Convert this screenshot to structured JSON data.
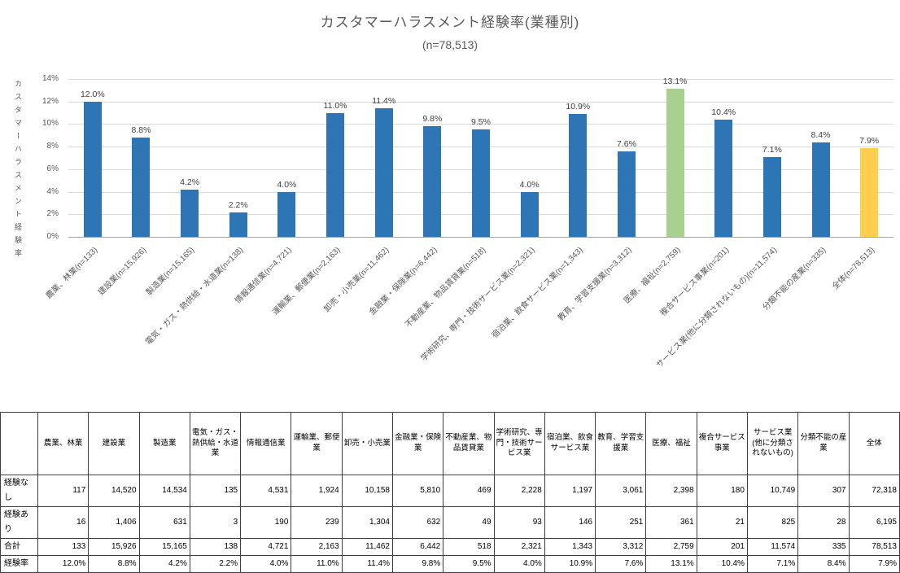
{
  "chart": {
    "title": "カスタマーハラスメント経験率(業種別)",
    "subtitle": "(n=78,513)",
    "y_axis_title": "カスタマーハラスメント経験率"
  },
  "chart_data": {
    "type": "bar",
    "title": "カスタマーハラスメント経験率(業種別)",
    "subtitle": "(n=78,513)",
    "xlabel": "",
    "ylabel": "カスタマーハラスメント経験率",
    "ylim": [
      0,
      14
    ],
    "ytick_step": 2,
    "ytick_suffix": "%",
    "grid": true,
    "legend": "none",
    "categories": [
      "農業、林業(n=133)",
      "建設業(n=15,926)",
      "製造業(n=15,165)",
      "電気・ガス・熱供給・水道業(n=138)",
      "情報通信業(n=4,721)",
      "運輸業、郵便業(n=2,163)",
      "卸売・小売業(n=11,462)",
      "金融業・保険業(n=6,442)",
      "不動産業、物品賃貸業(n=518)",
      "学術研究、専門・技術サービス業(n=2,321)",
      "宿泊業、飲食サービス業(n=1,343)",
      "教育、学習支援業(n=3,312)",
      "医療、福祉(n=2,759)",
      "複合サービス事業(n=201)",
      "サービス業(他に分類されないもの)(n=11,574)",
      "分類不能の産業(n=335)",
      "全体(n=78,513)"
    ],
    "values": [
      12.0,
      8.8,
      4.2,
      2.2,
      4.0,
      11.0,
      11.4,
      9.8,
      9.5,
      4.0,
      10.9,
      7.6,
      13.1,
      10.4,
      7.1,
      8.4,
      7.9
    ],
    "data_labels": [
      "12.0%",
      "8.8%",
      "4.2%",
      "2.2%",
      "4.0%",
      "11.0%",
      "11.4%",
      "9.8%",
      "9.5%",
      "4.0%",
      "10.9%",
      "7.6%",
      "13.1%",
      "10.4%",
      "7.1%",
      "8.4%",
      "7.9%"
    ],
    "bar_colors": [
      "#2e75b6",
      "#2e75b6",
      "#2e75b6",
      "#2e75b6",
      "#2e75b6",
      "#2e75b6",
      "#2e75b6",
      "#2e75b6",
      "#2e75b6",
      "#2e75b6",
      "#2e75b6",
      "#2e75b6",
      "#a9d18e",
      "#2e75b6",
      "#2e75b6",
      "#2e75b6",
      "#ffce4d"
    ],
    "colors": {
      "default_bar": "#2e75b6",
      "highlight_green": "#a9d18e",
      "highlight_yellow": "#ffce4d",
      "gridline": "#d9d9d9",
      "text": "#595959"
    }
  },
  "table": {
    "corner": "",
    "columns": [
      "農業、林業",
      "建設業",
      "製造業",
      "電気・ガス・熱供給・水道業",
      "情報通信業",
      "運輸業、郵便業",
      "卸売・小売業",
      "金融業・保険業",
      "不動産業、物品賃貸業",
      "学術研究、専門・技術サービス業",
      "宿泊業、飲食サービス業",
      "教育、学習支援業",
      "医療、福祉",
      "複合サービス事業",
      "サービス業(他に分類されないもの)",
      "分類不能の産業",
      "全体"
    ],
    "rows": [
      {
        "label": "経験なし",
        "values": [
          "117",
          "14,520",
          "14,534",
          "135",
          "4,531",
          "1,924",
          "10,158",
          "5,810",
          "469",
          "2,228",
          "1,197",
          "3,061",
          "2,398",
          "180",
          "10,749",
          "307",
          "72,318"
        ]
      },
      {
        "label": "経験あり",
        "values": [
          "16",
          "1,406",
          "631",
          "3",
          "190",
          "239",
          "1,304",
          "632",
          "49",
          "93",
          "146",
          "251",
          "361",
          "21",
          "825",
          "28",
          "6,195"
        ]
      },
      {
        "label": "合計",
        "values": [
          "133",
          "15,926",
          "15,165",
          "138",
          "4,721",
          "2,163",
          "11,462",
          "6,442",
          "518",
          "2,321",
          "1,343",
          "3,312",
          "2,759",
          "201",
          "11,574",
          "335",
          "78,513"
        ]
      },
      {
        "label": "経験率",
        "values": [
          "12.0%",
          "8.8%",
          "4.2%",
          "2.2%",
          "4.0%",
          "11.0%",
          "11.4%",
          "9.8%",
          "9.5%",
          "4.0%",
          "10.9%",
          "7.6%",
          "13.1%",
          "10.4%",
          "7.1%",
          "8.4%",
          "7.9%"
        ]
      }
    ]
  }
}
